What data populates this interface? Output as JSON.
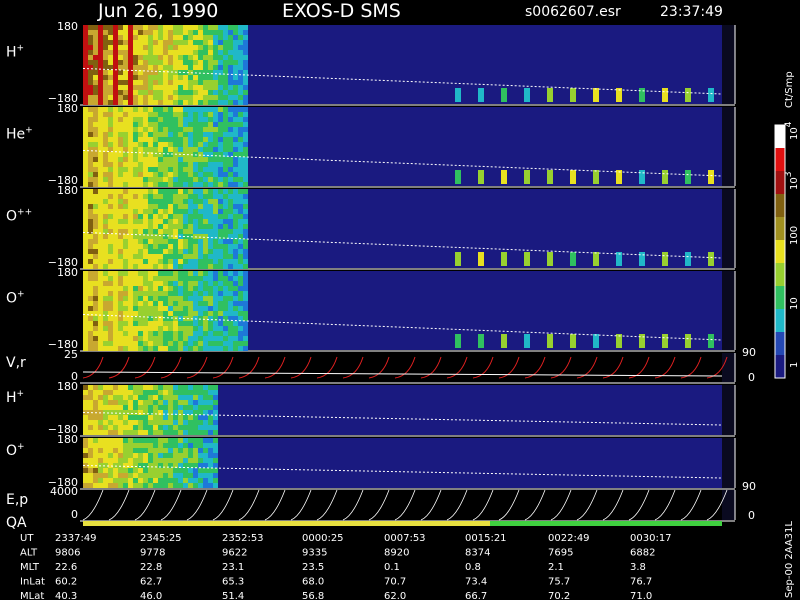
{
  "header": {
    "date": "Jun 26, 1990",
    "instrument": "EXOS-D SMS",
    "file": "s0062607.esr",
    "time": "23:37:49"
  },
  "panels": [
    {
      "label": {
        "base": "H",
        "sup": "+"
      },
      "top": "180",
      "bottom": "−180"
    },
    {
      "label": {
        "base": "He",
        "sup": "+"
      },
      "top": "180",
      "bottom": "−180"
    },
    {
      "label": {
        "base": "O",
        "sup": "++"
      },
      "top": "180",
      "bottom": "−180"
    },
    {
      "label": {
        "base": "O",
        "sup": "+"
      },
      "top": "180",
      "bottom": "−180"
    },
    {
      "label": {
        "base": "V,r"
      },
      "top": "25",
      "bottom": "0",
      "right_top": "90",
      "right_bottom": "0"
    },
    {
      "label": {
        "base": "H",
        "sup": "+"
      },
      "top": "180",
      "bottom": "−180"
    },
    {
      "label": {
        "base": "O",
        "sup": "+"
      },
      "top": "180",
      "bottom": "−180"
    },
    {
      "label": {
        "base": "E,p"
      },
      "top": "4000",
      "bottom": "0",
      "right_top": "90",
      "right_bottom": "0"
    }
  ],
  "qa_label": "QA",
  "colorbar": {
    "unit": "Ct/Smp",
    "labels": [
      {
        "base": "10",
        "sup": "4"
      },
      {
        "base": "10",
        "sup": "3"
      },
      {
        "base": "100"
      },
      {
        "base": "10"
      },
      {
        "base": "1"
      }
    ]
  },
  "table": {
    "rows": [
      [
        "UT",
        "2337:49",
        "2345:25",
        "2352:53",
        "0000:25",
        "0007:53",
        "0015:21",
        "0022:49",
        "0030:17"
      ],
      [
        "ALT",
        "9806",
        "9778",
        "9622",
        "9335",
        "8920",
        "8374",
        "7695",
        "6882"
      ],
      [
        "MLT",
        "22.6",
        "22.8",
        "23.1",
        "23.5",
        "0.1",
        "0.8",
        "2.1",
        "3.8"
      ],
      [
        "InLat",
        "60.2",
        "62.7",
        "65.3",
        "68.0",
        "70.7",
        "73.4",
        "75.7",
        "76.7"
      ],
      [
        "MLat",
        "40.3",
        "46.0",
        "51.4",
        "56.8",
        "62.0",
        "66.7",
        "70.2",
        "71.0"
      ]
    ]
  },
  "footer_id": "Sep-00  2AA31L"
}
